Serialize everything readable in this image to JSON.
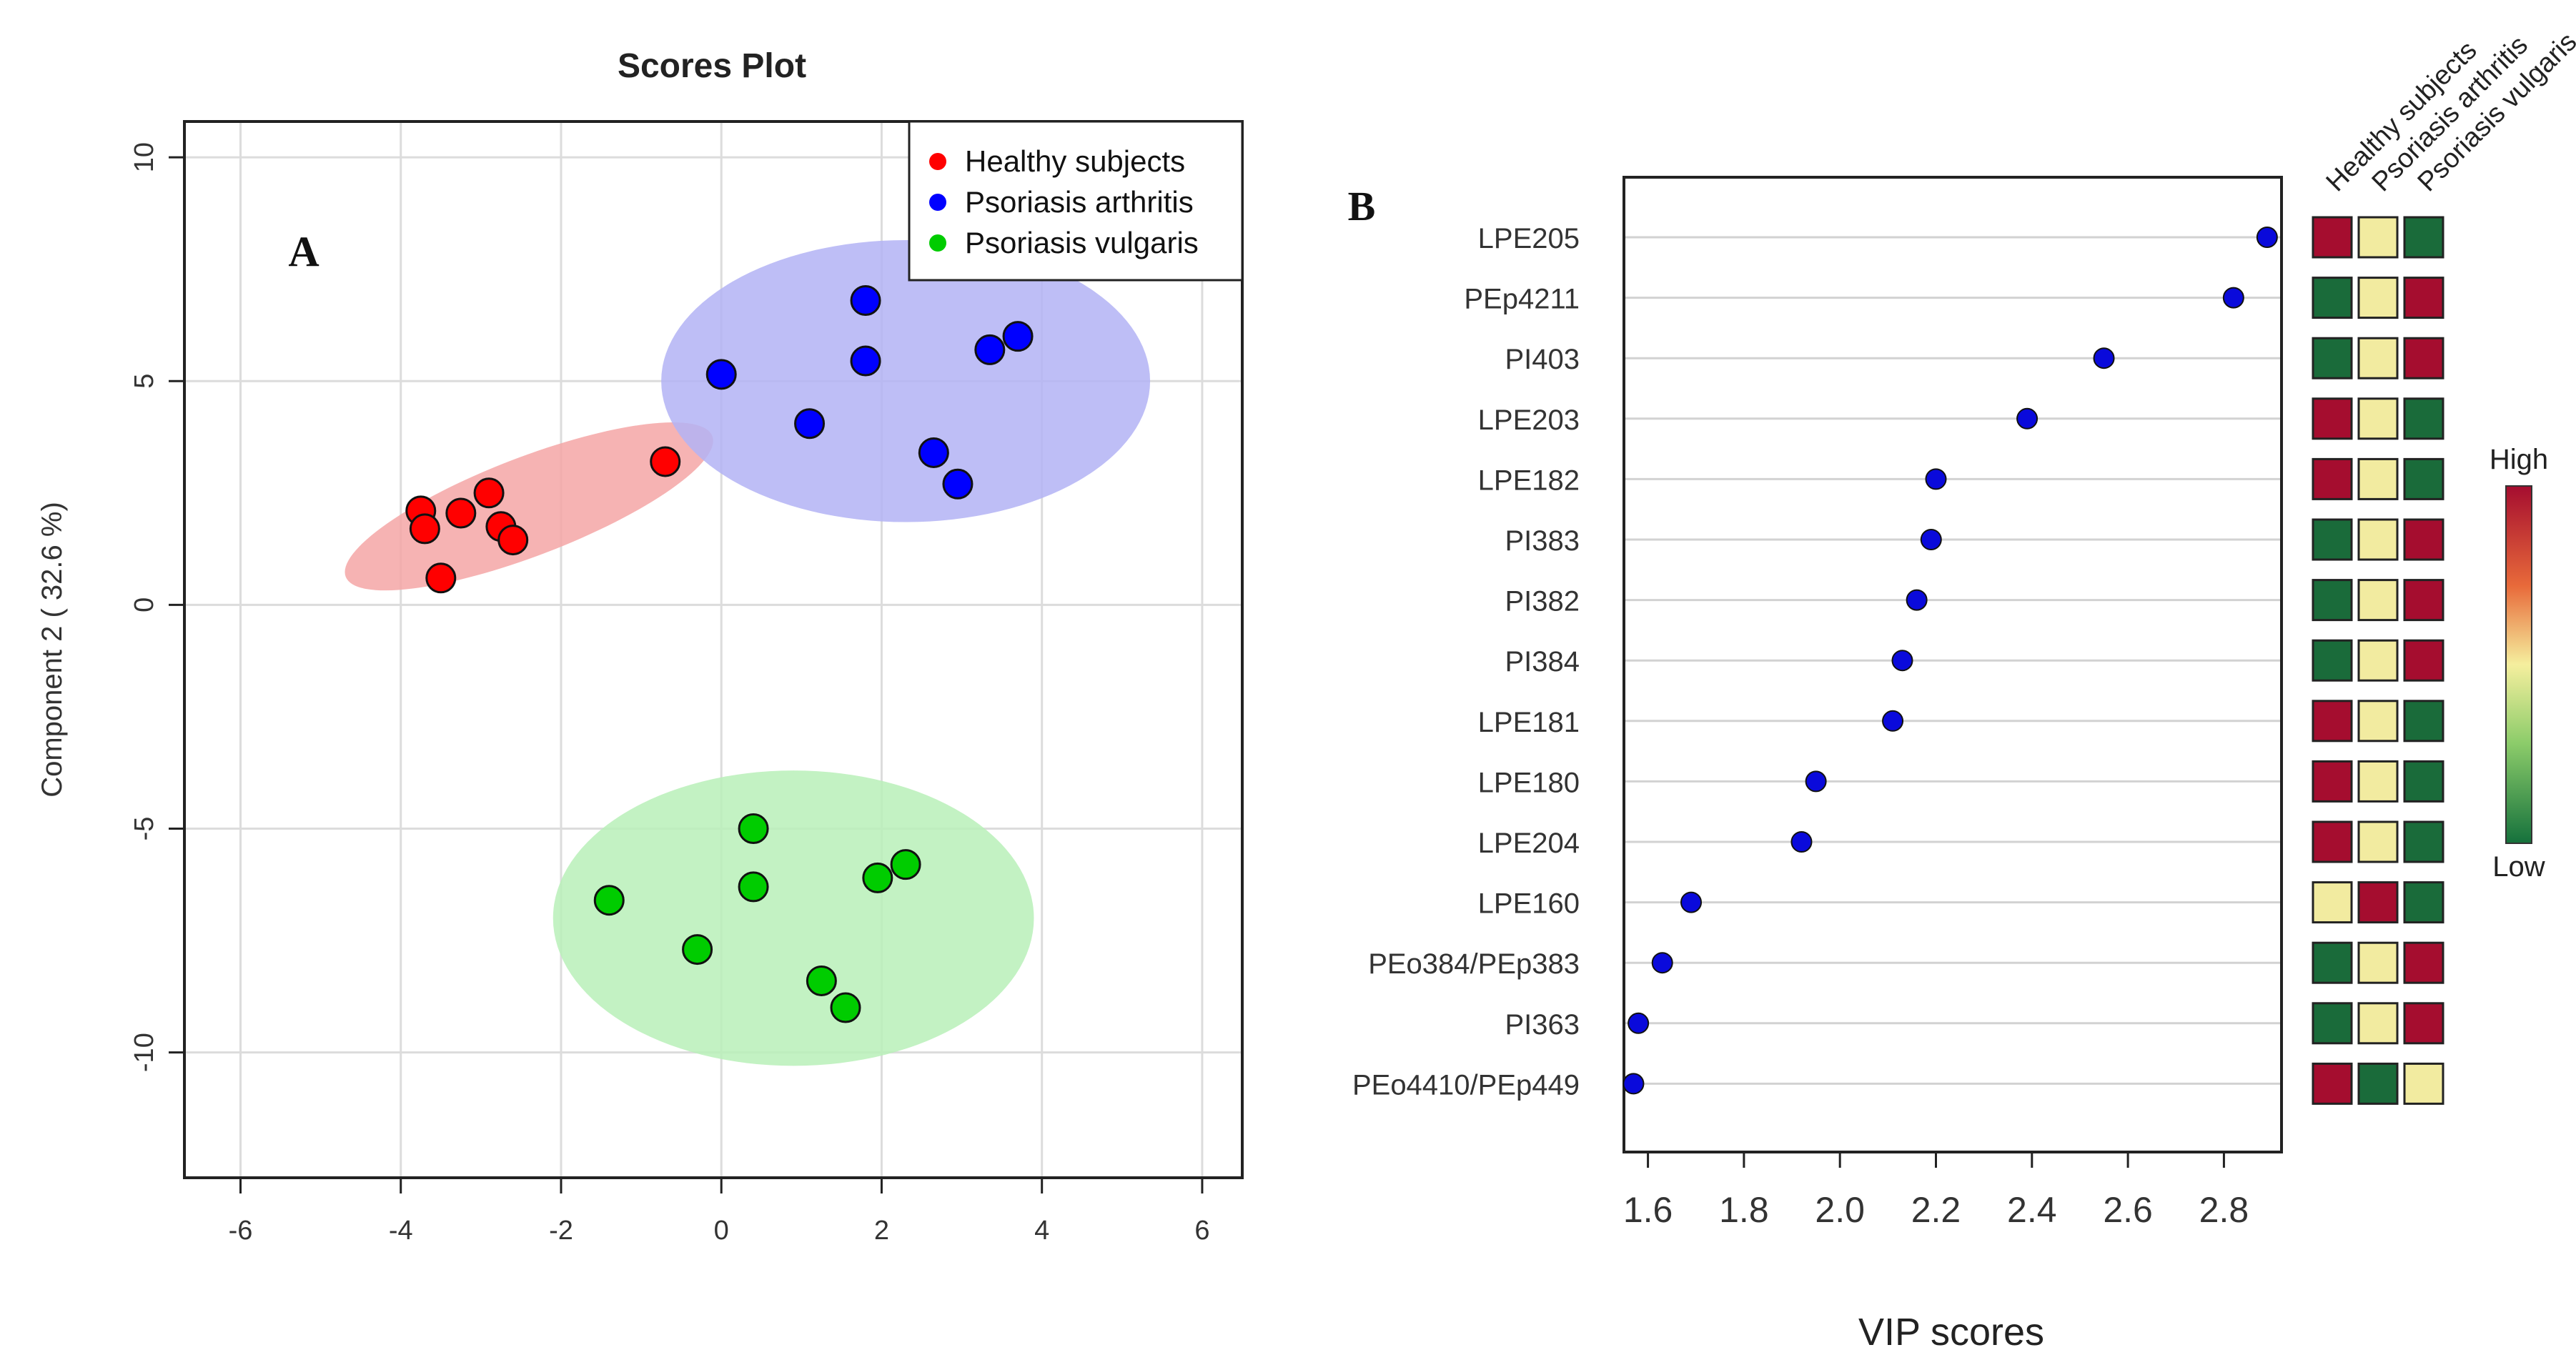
{
  "chart_data": [
    {
      "panel": "A",
      "type": "scatter",
      "title": "Scores Plot",
      "xlabel": "",
      "ylabel": "Component 2 ( 32.6 %)",
      "xlim": [
        -6.7,
        6.5
      ],
      "ylim": [
        -12.8,
        10.8
      ],
      "xticks": [
        -6,
        -4,
        -2,
        0,
        2,
        4,
        6
      ],
      "yticks": [
        10,
        5,
        0,
        -5,
        -10
      ],
      "grid": true,
      "legend_position": "top-right",
      "series": [
        {
          "name": "Healthy subjects",
          "color": "#ff0000",
          "fill": "#f4a6a6",
          "points": [
            [
              -3.75,
              2.1
            ],
            [
              -3.7,
              1.7
            ],
            [
              -3.25,
              2.05
            ],
            [
              -2.9,
              2.5
            ],
            [
              -2.75,
              1.75
            ],
            [
              -2.6,
              1.45
            ],
            [
              -3.5,
              0.6
            ],
            [
              -0.7,
              3.2
            ]
          ],
          "ellipse": {
            "cx": -2.4,
            "cy": 2.2,
            "rx": 2.45,
            "ry": 1.1,
            "angle": 21
          }
        },
        {
          "name": "Psoriasis arthritis",
          "color": "#0000ff",
          "fill": "#b3b3f5",
          "points": [
            [
              0.0,
              5.15
            ],
            [
              1.8,
              6.8
            ],
            [
              1.8,
              5.45
            ],
            [
              1.1,
              4.05
            ],
            [
              3.35,
              5.7
            ],
            [
              3.7,
              6.0
            ],
            [
              2.65,
              3.4
            ],
            [
              2.95,
              2.7
            ]
          ],
          "ellipse": {
            "cx": 2.3,
            "cy": 5.0,
            "rx": 3.05,
            "ry": 3.15,
            "angle": 0
          }
        },
        {
          "name": "Psoriasis vulgaris",
          "color": "#00cc00",
          "fill": "#b8f0b8",
          "points": [
            [
              -1.4,
              -6.6
            ],
            [
              0.4,
              -5.0
            ],
            [
              0.4,
              -6.3
            ],
            [
              -0.3,
              -7.7
            ],
            [
              1.95,
              -6.1
            ],
            [
              2.3,
              -5.8
            ],
            [
              1.25,
              -8.4
            ],
            [
              1.55,
              -9.0
            ]
          ],
          "ellipse": {
            "cx": 0.9,
            "cy": -7.0,
            "rx": 3.0,
            "ry": 3.3,
            "angle": 0
          }
        }
      ]
    },
    {
      "panel": "B",
      "type": "dot",
      "xlabel": "VIP scores",
      "xlim": [
        1.55,
        2.92
      ],
      "xticks": [
        1.6,
        1.8,
        2.0,
        2.2,
        2.4,
        2.6,
        2.8
      ],
      "xtick_labels": [
        "1.6",
        "1.8",
        "2.0",
        "2.2",
        "2.4",
        "2.6",
        "2.8"
      ],
      "categories": [
        "LPE205",
        "PEp4211",
        "PI403",
        "LPE203",
        "LPE182",
        "PI383",
        "PI382",
        "PI384",
        "LPE181",
        "LPE180",
        "LPE204",
        "LPE160",
        "PEo384/PEp383",
        "PI363",
        "PEo4410/PEp449"
      ],
      "values": [
        2.89,
        2.82,
        2.55,
        2.39,
        2.2,
        2.19,
        2.16,
        2.13,
        2.11,
        1.95,
        1.92,
        1.69,
        1.63,
        1.58,
        1.57
      ],
      "heatmap": {
        "columns": [
          "Healthy subjects",
          "Psoriasis arthritis",
          "Psoriasis vulgaris"
        ],
        "levels": [
          [
            "high",
            "mid",
            "low"
          ],
          [
            "low",
            "mid",
            "high"
          ],
          [
            "low",
            "mid",
            "high"
          ],
          [
            "high",
            "mid",
            "low"
          ],
          [
            "high",
            "mid",
            "low"
          ],
          [
            "low",
            "mid",
            "high"
          ],
          [
            "low",
            "mid",
            "high"
          ],
          [
            "low",
            "mid",
            "high"
          ],
          [
            "high",
            "mid",
            "low"
          ],
          [
            "high",
            "mid",
            "low"
          ],
          [
            "high",
            "mid",
            "low"
          ],
          [
            "mid",
            "high",
            "low"
          ],
          [
            "low",
            "mid",
            "high"
          ],
          [
            "low",
            "mid",
            "high"
          ],
          [
            "high",
            "low",
            "mid"
          ]
        ],
        "colors": {
          "high": "#a50d2f",
          "mid": "#f2eba0",
          "low": "#1a6b3a"
        },
        "scale_high_label": "High",
        "scale_low_label": "Low"
      }
    }
  ],
  "dot_color": "#0a0adb"
}
